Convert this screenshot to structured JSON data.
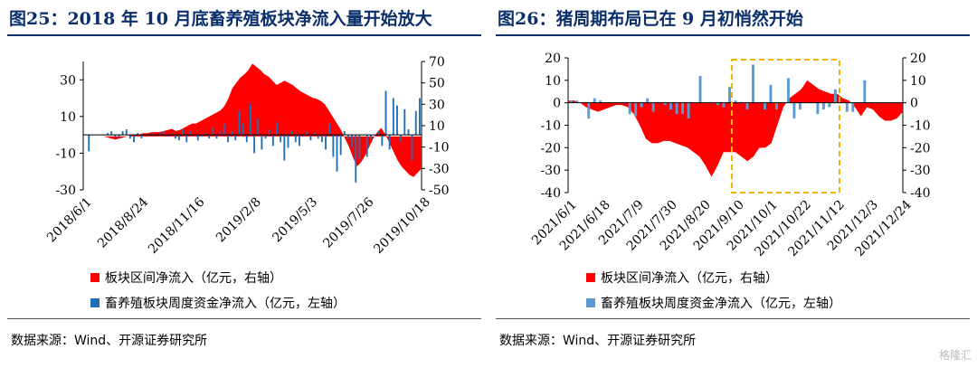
{
  "colors": {
    "title": "#0a2f6b",
    "red": "#ff0000",
    "blue_left": "#1f6fb8",
    "blue_right": "#5b9bd5",
    "highlight": "#f5b400"
  },
  "left": {
    "title": "图25：2018 年 10 月底畜养殖板块净流入量开始放大",
    "legend_red": "板块区间净流入（亿元，右轴）",
    "legend_blue": "畜养殖板块周度资金净流入（亿元，左轴）",
    "source": "数据来源：Wind、开源证券研究所"
  },
  "right": {
    "title": "图26：猪周期布局已在 9 月初悄然开始",
    "legend_red": "板块区间净流入（亿元，右轴）",
    "legend_blue": "畜养殖板块周度资金净流入（亿元，左轴）",
    "source": "数据来源：Wind、开源证券研究所"
  },
  "watermark": "格隆汇",
  "chart_data": [
    {
      "type": "bar+area",
      "title": "图25：2018 年 10 月底畜养殖板块净流入量开始放大",
      "left_axis": {
        "ticks": [
          30,
          10,
          -10,
          -30
        ],
        "ylim": [
          -30,
          40
        ]
      },
      "right_axis": {
        "ticks": [
          70,
          50,
          30,
          10,
          -10,
          -30,
          -50
        ],
        "ylim": [
          -50,
          70
        ]
      },
      "x_tick_labels": [
        "2018/6/1",
        "2018/8/24",
        "2018/11/16",
        "2019/2/8",
        "2019/5/3",
        "2019/7/26",
        "2019/10/18"
      ],
      "series": [
        {
          "name": "板块区间净流入（亿元，右轴）",
          "kind": "area",
          "axis": "right",
          "values": [
            0,
            0,
            0,
            0,
            0,
            0,
            -1,
            -2,
            -3,
            -2,
            -1,
            0,
            1,
            2,
            2,
            3,
            3,
            4,
            4,
            4,
            5,
            6,
            7,
            5,
            6,
            8,
            10,
            12,
            12,
            14,
            16,
            18,
            20,
            22,
            24,
            28,
            35,
            45,
            50,
            55,
            58,
            62,
            68,
            65,
            62,
            58,
            56,
            52,
            48,
            50,
            52,
            50,
            48,
            45,
            42,
            40,
            38,
            36,
            35,
            33,
            30,
            24,
            18,
            12,
            6,
            -2,
            -10,
            -20,
            -28,
            -24,
            -18,
            -10,
            -2,
            4,
            8,
            2,
            -6,
            -14,
            -22,
            -28,
            -32,
            -36,
            -38,
            -34,
            -30
          ]
        },
        {
          "name": "畜养殖板块周度资金净流入（亿元，左轴）",
          "kind": "bar",
          "axis": "left",
          "values": [
            0,
            -9,
            0,
            0,
            0,
            0,
            1,
            2,
            -1,
            -2,
            2,
            3,
            -2,
            -4,
            1,
            -2,
            0,
            0,
            1,
            0,
            1,
            2,
            -1,
            1,
            -2,
            -3,
            3,
            -4,
            2,
            0,
            -3,
            -1,
            1,
            -2,
            4,
            -2,
            2,
            6,
            -4,
            2,
            -3,
            13,
            6,
            -4,
            17,
            -10,
            9,
            -8,
            -2,
            3,
            -6,
            7,
            -4,
            -14,
            -7,
            2,
            -4,
            -6,
            -1,
            2,
            -3,
            1,
            -2,
            -4,
            -8,
            6,
            -12,
            -20,
            -11,
            2,
            -2,
            -7,
            -26,
            -13,
            0,
            -12,
            -2,
            0,
            2,
            -6,
            24,
            -8,
            20,
            16,
            -4,
            14,
            3,
            -14,
            13,
            20
          ]
        }
      ]
    },
    {
      "type": "bar+area",
      "title": "图26：猪周期布局已在 9 月初悄然开始",
      "left_axis": {
        "ticks": [
          20,
          10,
          0,
          -10,
          -20,
          -30,
          -40
        ],
        "ylim": [
          -40,
          20
        ]
      },
      "right_axis": {
        "ticks": [
          20,
          10,
          0,
          -10,
          -20,
          -30,
          -40
        ],
        "ylim": [
          -40,
          20
        ]
      },
      "x_tick_labels": [
        "2021/6/1",
        "2021/6/18",
        "2021/7/9",
        "2021/7/30",
        "2021/8/20",
        "2021/9/10",
        "2021/10/1",
        "2021/10/22",
        "2021/11/12",
        "2021/12/3",
        "2021/12/24"
      ],
      "series": [
        {
          "name": "板块区间净流入（亿元，右轴）",
          "kind": "area",
          "axis": "right",
          "values": [
            1,
            1,
            0,
            -2,
            -3,
            -4,
            -3,
            -2,
            -1,
            -1,
            -2,
            -5,
            -10,
            -16,
            -18,
            -18,
            -17,
            -17,
            -18,
            -19,
            -20,
            -22,
            -24,
            -28,
            -33,
            -28,
            -22,
            -22,
            -22,
            -24,
            -26,
            -24,
            -20,
            -20,
            -18,
            -10,
            -2,
            2,
            4,
            6,
            10,
            8,
            6,
            5,
            4,
            4,
            2,
            1,
            -2,
            -6,
            -2,
            -3,
            -6,
            -8,
            -8,
            -7,
            -4
          ]
        },
        {
          "name": "畜养殖板块周度资金净流入（亿元，左轴）",
          "kind": "bar",
          "axis": "left",
          "values": [
            1,
            1,
            0,
            -7,
            2,
            1,
            0,
            0,
            0,
            0,
            -5,
            -6,
            -2,
            2,
            -4,
            0,
            -1,
            -3,
            -5,
            -5,
            -7,
            0,
            12,
            0,
            0,
            -1,
            -2,
            7,
            1,
            0,
            -3,
            17,
            0,
            -3,
            8,
            -3,
            0,
            11,
            -7,
            -3,
            0,
            0,
            -5,
            -3,
            -2,
            6,
            0,
            -4,
            -4,
            0,
            10,
            0,
            0,
            0,
            0,
            0,
            0
          ]
        }
      ],
      "highlight_box": {
        "from": "2021/9/10",
        "to": "2021/11/12",
        "style": "dashed",
        "color": "#f5b400"
      }
    }
  ]
}
